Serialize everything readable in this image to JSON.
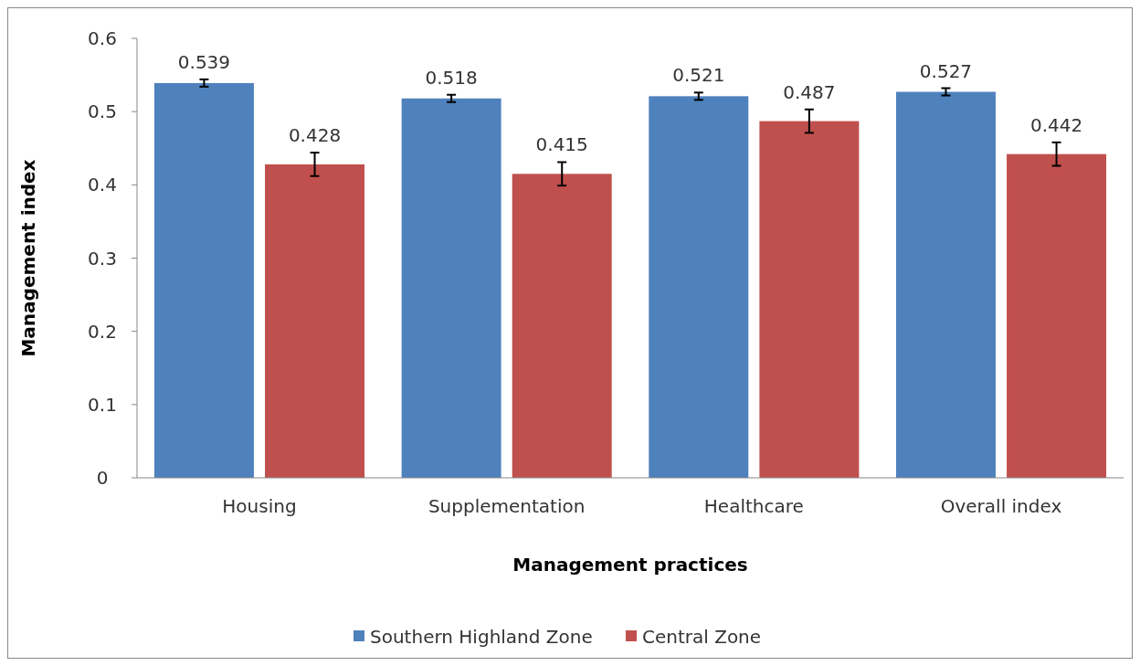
{
  "chart_data": {
    "type": "bar",
    "xlabel": "Management practices",
    "ylabel": "Management index",
    "categories": [
      "Housing",
      "Supplementation",
      "Healthcare",
      "Overall index"
    ],
    "series": [
      {
        "name": "Southern Highland Zone",
        "color": "#4f81bd",
        "values": [
          0.539,
          0.518,
          0.521,
          0.527
        ],
        "errors": [
          0.005,
          0.005,
          0.005,
          0.005
        ]
      },
      {
        "name": "Central Zone",
        "color": "#c0504d",
        "values": [
          0.428,
          0.415,
          0.487,
          0.442
        ],
        "errors": [
          0.016,
          0.016,
          0.016,
          0.016
        ]
      }
    ],
    "ylim": [
      0,
      0.6
    ],
    "yticks": [
      0,
      0.1,
      0.2,
      0.3,
      0.4,
      0.5,
      0.6
    ],
    "grid": false,
    "legend": "bottom",
    "data_labels": true
  }
}
